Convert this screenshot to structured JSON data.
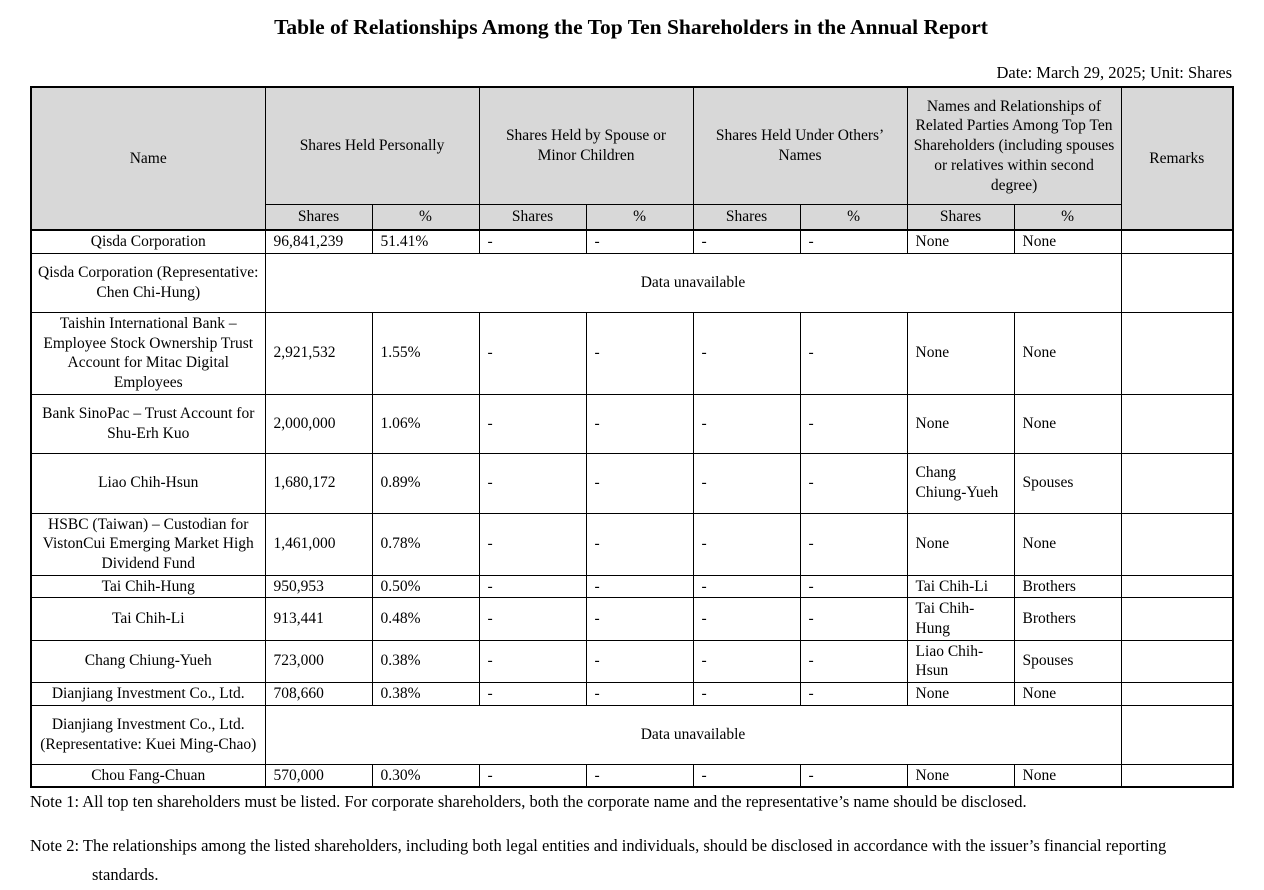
{
  "page": {
    "title": "Table of Relationships Among the Top Ten Shareholders in the Annual Report",
    "date_line": "Date: March 29, 2025; Unit: Shares"
  },
  "colors": {
    "header_bg": "#d8d8d8",
    "border": "#000000",
    "text": "#000000"
  },
  "table": {
    "header": {
      "name": "Name",
      "personal": "Shares Held Personally",
      "spouse": "Shares Held by Spouse or Minor Children",
      "others": "Shares Held Under Others’ Names",
      "related": "Names and Relationships of Related Parties Among Top Ten Shareholders (including spouses or relatives within second degree)",
      "remarks": "Remarks"
    },
    "sub_headers": [
      "Shares",
      "%"
    ],
    "rows": [
      {
        "name": "Qisda Corporation",
        "cells": [
          "96,841,239",
          "51.41%",
          "-",
          "-",
          "-",
          "-",
          "None",
          "None"
        ],
        "remarks": ""
      },
      {
        "name": "Qisda Corporation (Representative: Chen Chi-Hung)",
        "span": "Data unavailable",
        "remarks": ""
      },
      {
        "name": "Taishin International Bank – Employee Stock Ownership Trust Account for Mitac Digital Employees",
        "cells": [
          "2,921,532",
          "1.55%",
          "-",
          "-",
          "-",
          "-",
          "None",
          "None"
        ],
        "remarks": ""
      },
      {
        "name": "Bank SinoPac – Trust Account for Shu-Erh Kuo",
        "cells": [
          "2,000,000",
          "1.06%",
          "-",
          "-",
          "-",
          "-",
          "None",
          "None"
        ],
        "remarks": ""
      },
      {
        "name": "Liao Chih-Hsun",
        "cells": [
          "1,680,172",
          "0.89%",
          "-",
          "-",
          "-",
          "-",
          "Chang Chiung-Yueh",
          "Spouses"
        ],
        "remarks": ""
      },
      {
        "name": "HSBC (Taiwan) – Custodian for VistonCui Emerging Market High Dividend Fund",
        "cells": [
          "1,461,000",
          "0.78%",
          "-",
          "-",
          "-",
          "-",
          "None",
          "None"
        ],
        "remarks": ""
      },
      {
        "name": "Tai Chih-Hung",
        "cells": [
          "950,953",
          "0.50%",
          "-",
          "-",
          "-",
          "-",
          "Tai Chih-Li",
          "Brothers"
        ],
        "remarks": ""
      },
      {
        "name": "Tai Chih-Li",
        "cells": [
          "913,441",
          "0.48%",
          "-",
          "-",
          "-",
          "-",
          "Tai Chih-Hung",
          "Brothers"
        ],
        "remarks": ""
      },
      {
        "name": "Chang Chiung-Yueh",
        "cells": [
          "723,000",
          "0.38%",
          "-",
          "-",
          "-",
          "-",
          "Liao Chih-Hsun",
          "Spouses"
        ],
        "remarks": ""
      },
      {
        "name": "Dianjiang Investment Co., Ltd.",
        "cells": [
          "708,660",
          "0.38%",
          "-",
          "-",
          "-",
          "-",
          "None",
          "None"
        ],
        "remarks": ""
      },
      {
        "name": "Dianjiang Investment Co., Ltd. (Representative: Kuei Ming-Chao)",
        "span": "Data unavailable",
        "remarks": ""
      },
      {
        "name": "Chou Fang-Chuan",
        "cells": [
          "570,000",
          "0.30%",
          "-",
          "-",
          "-",
          "-",
          "None",
          "None"
        ],
        "remarks": ""
      }
    ]
  },
  "notes": [
    "Note 1: All top ten shareholders must be listed. For corporate shareholders, both the corporate name and the representative’s name should be disclosed.",
    "Note 2: The relationships among the listed shareholders, including both legal entities and individuals, should be disclosed in accordance with the issuer’s financial reporting standards."
  ]
}
